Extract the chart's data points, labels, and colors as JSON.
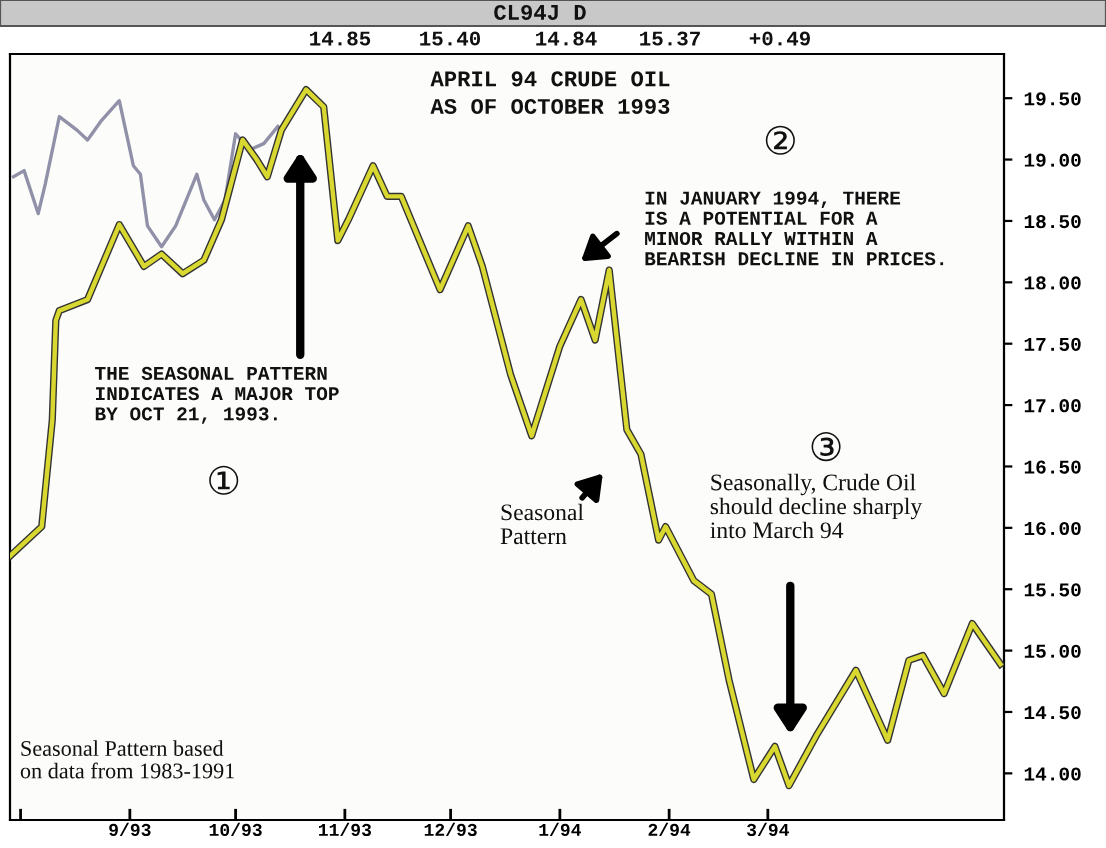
{
  "chart_data": {
    "type": "line",
    "title": "APRIL 94 CRUDE OIL",
    "subtitle": "AS OF OCTOBER 1993",
    "series": [
      {
        "color": "#d8d830",
        "x": [
          "1993-07-29",
          "1993-08-07",
          "1993-08-10",
          "1993-08-11",
          "1993-08-12",
          "1993-08-20",
          "1993-08-29",
          "1993-09-05",
          "1993-09-10",
          "1993-09-16",
          "1993-09-22",
          "1993-09-27",
          "1993-10-03",
          "1993-10-07",
          "1993-10-10",
          "1993-10-14",
          "1993-10-21",
          "1993-10-26",
          "1993-10-30",
          "1993-11-02",
          "1993-11-09",
          "1993-11-13",
          "1993-11-17",
          "1993-11-28",
          "1993-12-06",
          "1993-12-10",
          "1993-12-18",
          "1993-12-24",
          "1994-01-01",
          "1994-01-07",
          "1994-01-11",
          "1994-01-15",
          "1994-01-20",
          "1994-01-24",
          "1994-01-29",
          "1994-01-31",
          "1994-02-08",
          "1994-02-13",
          "1994-02-18",
          "1994-02-25",
          "1994-03-03",
          "1994-03-07",
          "1994-03-15",
          "1994-03-26",
          "1994-04-04",
          "1994-04-10",
          "1994-04-14",
          "1994-04-20",
          "1994-04-28",
          "1994-05-06"
        ],
        "values": [
          15.77,
          16.01,
          16.88,
          17.69,
          17.77,
          17.86,
          18.47,
          18.13,
          18.23,
          18.07,
          18.18,
          18.51,
          19.16,
          19.0,
          18.86,
          19.24,
          19.57,
          19.43,
          18.34,
          18.51,
          18.95,
          18.7,
          18.7,
          17.94,
          18.46,
          18.13,
          17.25,
          16.75,
          17.48,
          17.86,
          17.53,
          18.1,
          16.8,
          16.6,
          15.9,
          16.01,
          15.57,
          15.46,
          14.76,
          13.95,
          14.22,
          13.9,
          14.32,
          14.84,
          14.27,
          14.92,
          14.96,
          14.65,
          15.22,
          14.89
        ]
      },
      {
        "color": "#9090a8",
        "x": [
          "1993-07-30",
          "1993-08-02",
          "1993-08-06",
          "1993-08-08",
          "1993-08-12",
          "1993-08-17",
          "1993-08-20",
          "1993-08-24",
          "1993-08-29",
          "1993-09-02",
          "1993-09-04",
          "1993-09-06",
          "1993-09-10",
          "1993-09-14",
          "1993-09-20",
          "1993-09-22",
          "1993-09-25",
          "1993-09-28",
          "1993-10-01",
          "1993-10-05",
          "1993-10-09",
          "1993-10-13"
        ],
        "values": [
          18.86,
          18.91,
          18.56,
          18.8,
          19.35,
          19.24,
          19.16,
          19.32,
          19.48,
          18.95,
          18.88,
          18.46,
          18.29,
          18.46,
          18.88,
          18.67,
          18.51,
          18.67,
          19.21,
          19.08,
          19.13,
          19.27
        ]
      }
    ],
    "xlim": [
      "1993-07-29",
      "1994-05-07"
    ],
    "ylim": [
      13.62,
      19.86
    ],
    "xticks": [
      {
        "value": "1993-08-01",
        "label": null
      },
      {
        "value": "1993-09-01",
        "label": "9/93"
      },
      {
        "value": "1993-10-01",
        "label": "10/93"
      },
      {
        "value": "1993-11-01",
        "label": "11/93"
      },
      {
        "value": "1993-12-01",
        "label": "12/93"
      },
      {
        "value": "1994-01-01",
        "label": "1/94"
      },
      {
        "value": "1994-02-01",
        "label": "2/94"
      },
      {
        "value": "1994-03-01",
        "label": "3/94"
      }
    ],
    "yticks": [
      {
        "value": 14,
        "label": "14.00"
      },
      {
        "value": 14.5,
        "label": "14.50"
      },
      {
        "value": 15,
        "label": "15.00"
      },
      {
        "value": 15.5,
        "label": "15.50"
      },
      {
        "value": 16,
        "label": "16.00"
      },
      {
        "value": 16.5,
        "label": "16.50"
      },
      {
        "value": 17,
        "label": "17.00"
      },
      {
        "value": 17.5,
        "label": "17.50"
      },
      {
        "value": 18,
        "label": "18.00"
      },
      {
        "value": 18.5,
        "label": "18.50"
      },
      {
        "value": 19,
        "label": "19.00"
      },
      {
        "value": 19.5,
        "label": "19.50"
      }
    ],
    "grid": false,
    "marker": "none",
    "line_style": "solid",
    "annotations": [
      "THE SEASONAL PATTERN\nINDICATES A MAJOR TOP\nBY OCT 21, 1993.",
      "①",
      "②",
      "IN JANUARY 1994, THERE\nIS A POTENTIAL FOR A\nMINOR RALLY WITHIN A\nBEARISH DECLINE IN PRICES.",
      "Seasonal\nPattern",
      "③",
      "Seasonally, Crude Oil\nshould decline sharply\ninto March 94",
      "Seasonal Pattern based\non data from 1983-1991",
      "CL94J D",
      "14.85",
      "15.40",
      "14.84",
      "15.37",
      "+0.49"
    ]
  }
}
